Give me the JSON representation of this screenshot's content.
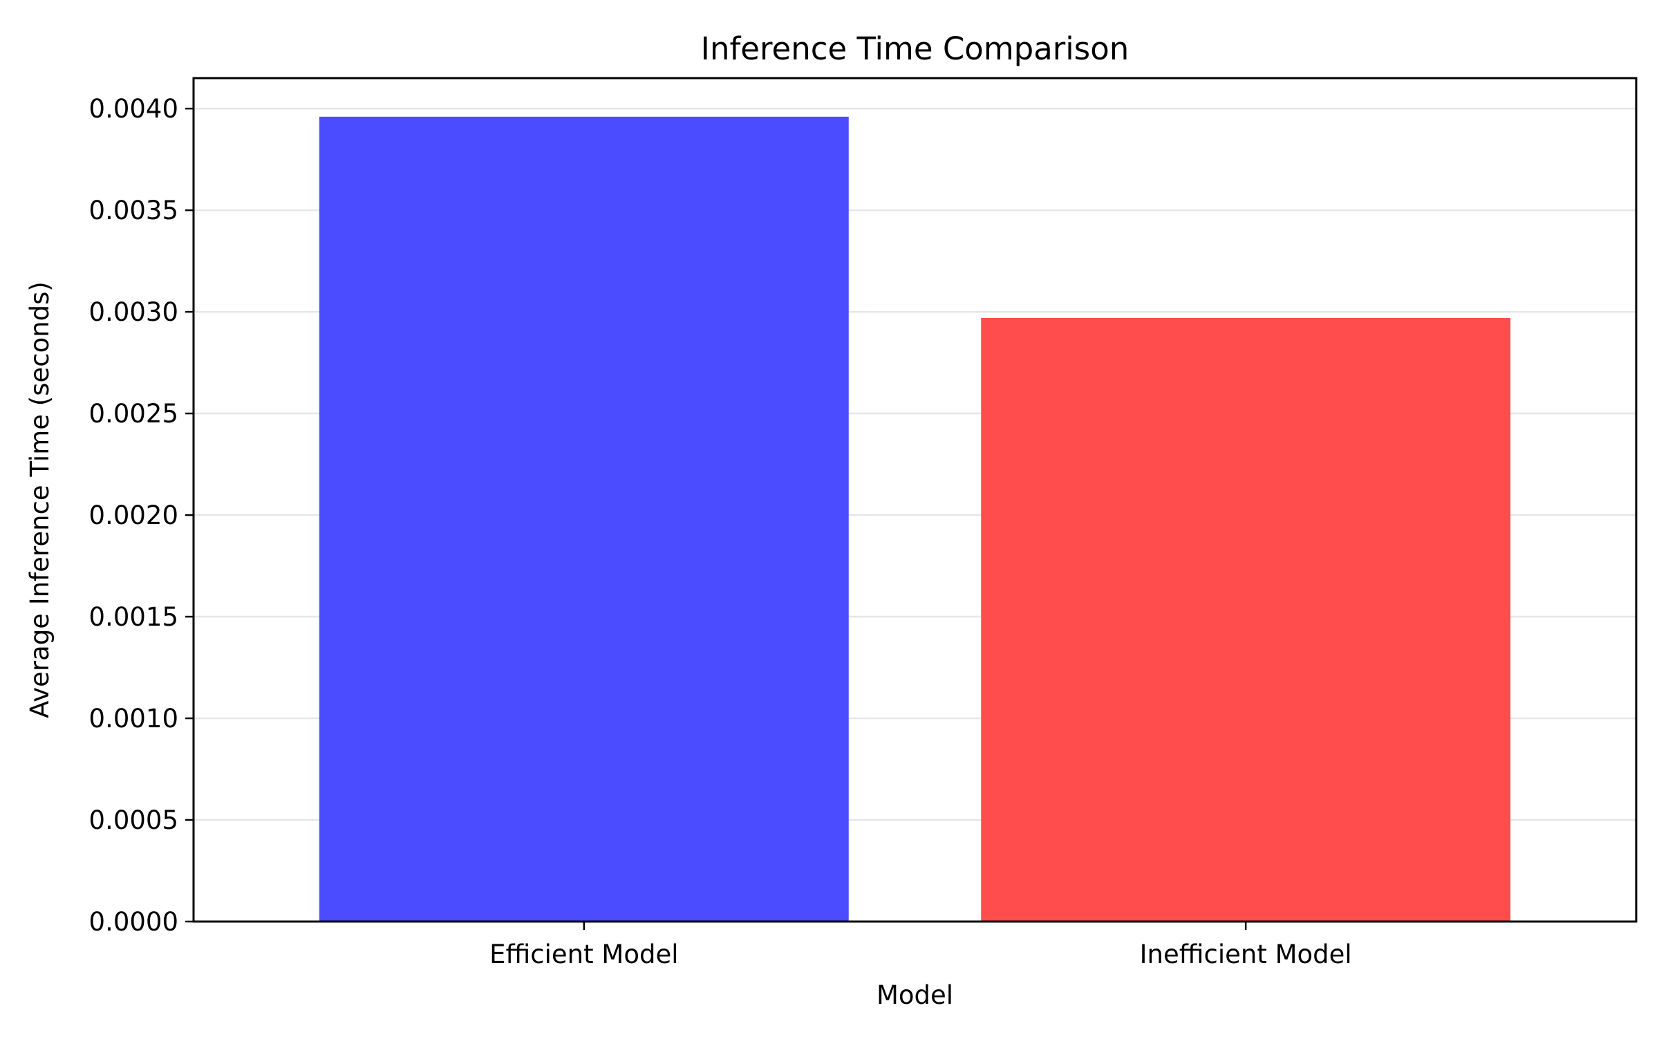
{
  "chart_data": {
    "type": "bar",
    "title": "Inference Time Comparison",
    "xlabel": "Model",
    "ylabel": "Average Inference Time (seconds)",
    "categories": [
      "Efficient Model",
      "Inefficient Model"
    ],
    "values": [
      0.00396,
      0.00297
    ],
    "bar_colors": [
      "#4b4bff",
      "#ff4c4c"
    ],
    "ylim": [
      0,
      0.00415
    ],
    "yticks": [
      0.0,
      0.0005,
      0.001,
      0.0015,
      0.002,
      0.0025,
      0.003,
      0.0035,
      0.004
    ],
    "ytick_labels": [
      "0.0000",
      "0.0005",
      "0.0010",
      "0.0015",
      "0.0020",
      "0.0025",
      "0.0030",
      "0.0035",
      "0.0040"
    ],
    "grid": "y",
    "grid_color": "#e6e6e6",
    "legend": "none"
  }
}
